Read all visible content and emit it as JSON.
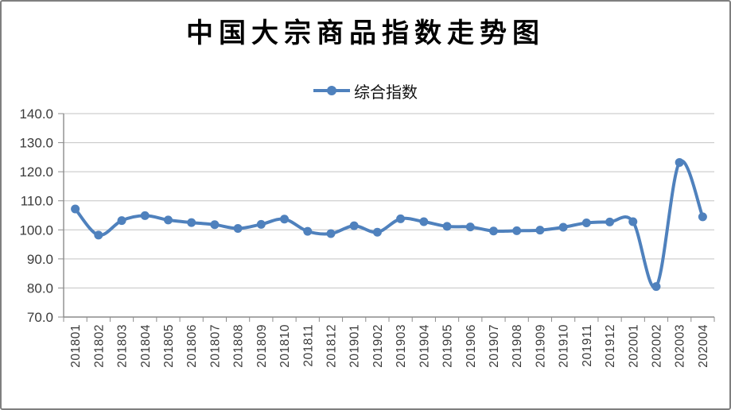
{
  "colors": {
    "series": "#4f81bd",
    "grid": "#c3c3c3",
    "axis": "#8c8c8c",
    "tick": "#8c8c8c",
    "label": "#3a3a3a",
    "title": "#000000",
    "border": "#7f7f7f"
  },
  "chart_data": {
    "type": "line",
    "title": "中国大宗商品指数走势图",
    "xlabel": "",
    "ylabel": "",
    "categories": [
      "201801",
      "201802",
      "201803",
      "201804",
      "201805",
      "201806",
      "201807",
      "201808",
      "201809",
      "201810",
      "201811",
      "201812",
      "201901",
      "201902",
      "201903",
      "201904",
      "201905",
      "201906",
      "201907",
      "201908",
      "201909",
      "201910",
      "201911",
      "201912",
      "202001",
      "202002",
      "202003",
      "202004"
    ],
    "series": [
      {
        "name": "综合指数",
        "values": [
          107.2,
          98.2,
          103.2,
          104.9,
          103.4,
          102.5,
          101.8,
          100.5,
          101.9,
          103.7,
          99.5,
          98.7,
          101.4,
          99.2,
          103.8,
          102.8,
          101.2,
          101.0,
          99.6,
          99.7,
          99.9,
          100.9,
          102.4,
          102.7,
          102.8,
          80.5,
          123.2,
          104.5
        ]
      }
    ],
    "ylim": [
      70,
      140
    ],
    "y_tick_labels": [
      "140.0",
      "130.0",
      "120.0",
      "110.0",
      "100.0",
      "90.0",
      "80.0",
      "70.0"
    ],
    "grid": "horizontal",
    "legend_position": "top",
    "smooth": true,
    "marker": "circle"
  }
}
